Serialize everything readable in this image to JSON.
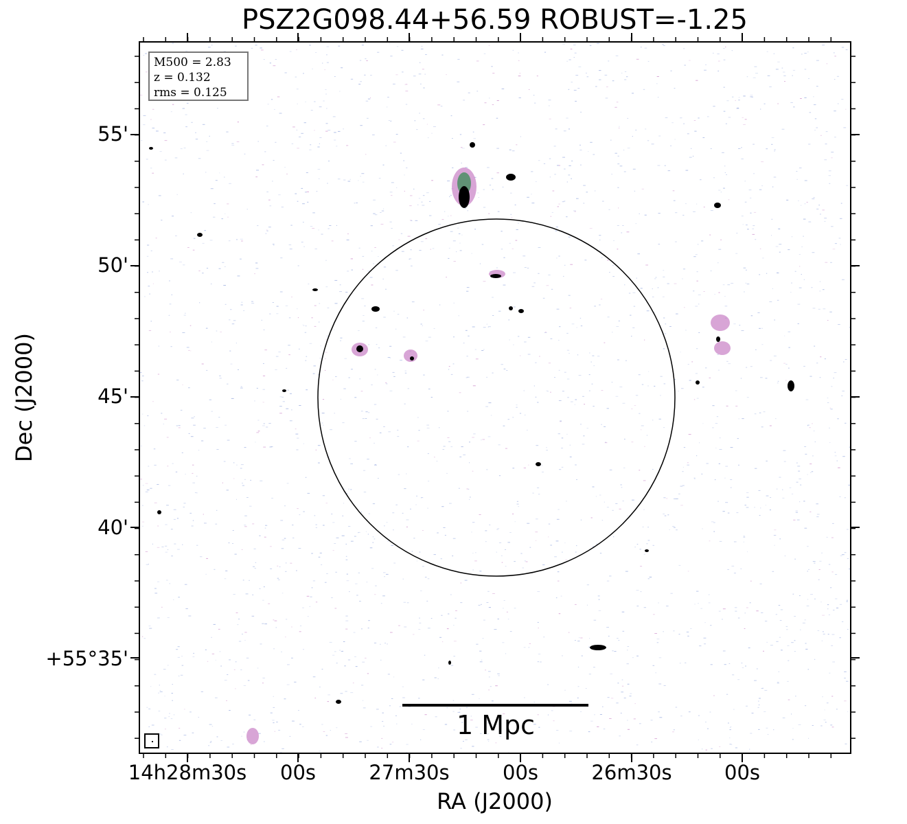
{
  "title": "PSZ2G098.44+56.59 ROBUST=-1.25",
  "axes": {
    "xlabel": "RA (J2000)",
    "ylabel": "Dec (J2000)",
    "x_ticks": [
      "14h28m30s",
      "00s",
      "27m30s",
      "00s",
      "26m30s",
      "00s"
    ],
    "y_ticks": [
      "55'",
      "50'",
      "45'",
      "40'",
      "+55°35'"
    ]
  },
  "info": {
    "m500": "M500 = 2.83",
    "z": "z = 0.132",
    "rms": "rms = 0.125"
  },
  "scale_bar": {
    "label": "1 Mpc"
  },
  "colors": {
    "noise": "#8fa4dc",
    "emission_faint": "#c77fc4",
    "emission_mid": "#2e8a4b",
    "source": "#000000",
    "circle": "#000000"
  }
}
